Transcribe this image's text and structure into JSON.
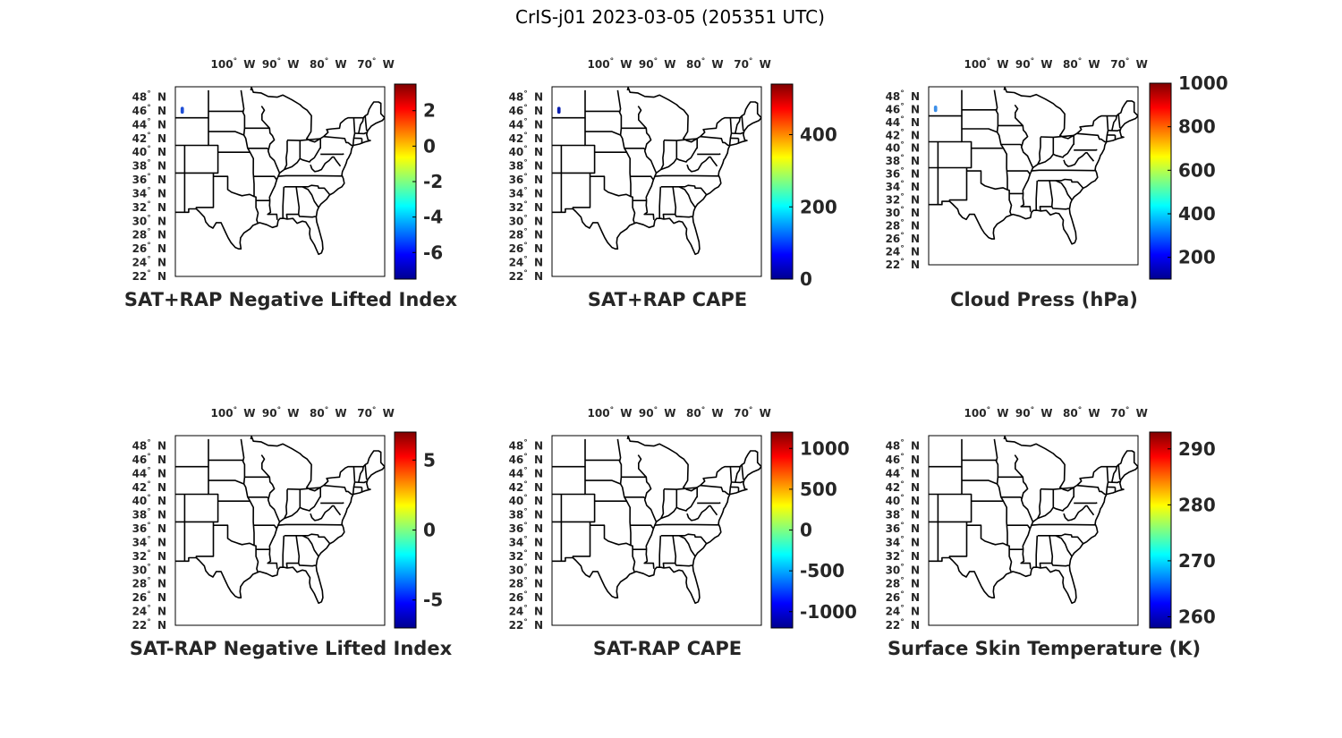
{
  "figure": {
    "title": "CrIS-j01 2023-03-05 (205351 UTC)"
  },
  "colormap": [
    "#00008f",
    "#0000ff",
    "#0080ff",
    "#00ffff",
    "#80ff80",
    "#ffff00",
    "#ff8000",
    "#ff0000",
    "#800000"
  ],
  "chart_data": [
    {
      "type": "heatmap",
      "title": "SAT+RAP Negative Lifted Index",
      "lon_ticks": [
        "100° W",
        "90° W",
        "80° W",
        "70° W"
      ],
      "lat_ticks": [
        "48° N",
        "46° N",
        "44° N",
        "42° N",
        "40° N",
        "38° N",
        "36° N",
        "34° N",
        "32° N",
        "30° N",
        "28° N",
        "26° N",
        "24° N",
        "22° N"
      ],
      "colorbar": {
        "range": [
          -7.5,
          3.5
        ],
        "ticks": [
          2,
          0,
          -2,
          -4,
          -6
        ]
      },
      "data_swath": {
        "lon": [
          -109.9,
          -109.2
        ],
        "lat": [
          45.6,
          46.6
        ],
        "color": "#1f4fd6"
      }
    },
    {
      "type": "heatmap",
      "title": "SAT+RAP CAPE",
      "lon_ticks": [
        "100° W",
        "90° W",
        "80° W",
        "70° W"
      ],
      "lat_ticks": [
        "48° N",
        "46° N",
        "44° N",
        "42° N",
        "40° N",
        "38° N",
        "36° N",
        "34° N",
        "32° N",
        "30° N",
        "28° N",
        "26° N",
        "24° N",
        "22° N"
      ],
      "colorbar": {
        "range": [
          0,
          540
        ],
        "ticks": [
          400,
          200,
          0
        ]
      },
      "data_swath": {
        "lon": [
          -109.9,
          -109.2
        ],
        "lat": [
          45.6,
          46.6
        ],
        "color": "#0a1fb0"
      }
    },
    {
      "type": "heatmap",
      "title": "Cloud Press (hPa)",
      "lon_ticks": [
        "100° W",
        "90° W",
        "80° W",
        "70° W"
      ],
      "lat_ticks": [
        "48° N",
        "46° N",
        "44° N",
        "42° N",
        "40° N",
        "38° N",
        "36° N",
        "34° N",
        "32° N",
        "30° N",
        "28° N",
        "26° N",
        "24° N",
        "22° N"
      ],
      "colorbar": {
        "range": [
          100,
          1000
        ],
        "ticks": [
          1000,
          800,
          600,
          400,
          200
        ]
      },
      "data_swath": {
        "lon": [
          -109.9,
          -109.2
        ],
        "lat": [
          45.6,
          46.6
        ],
        "color": "#3d8fe8"
      }
    },
    {
      "type": "heatmap",
      "title": "SAT-RAP Negative Lifted Index",
      "lon_ticks": [
        "100° W",
        "90° W",
        "80° W",
        "70° W"
      ],
      "lat_ticks": [
        "48° N",
        "46° N",
        "44° N",
        "42° N",
        "40° N",
        "38° N",
        "36° N",
        "34° N",
        "32° N",
        "30° N",
        "28° N",
        "26° N",
        "24° N",
        "22° N"
      ],
      "colorbar": {
        "range": [
          -7,
          7
        ],
        "ticks": [
          5,
          0,
          -5
        ]
      }
    },
    {
      "type": "heatmap",
      "title": "SAT-RAP CAPE",
      "lon_ticks": [
        "100° W",
        "90° W",
        "80° W",
        "70° W"
      ],
      "lat_ticks": [
        "48° N",
        "46° N",
        "44° N",
        "42° N",
        "40° N",
        "38° N",
        "36° N",
        "34° N",
        "32° N",
        "30° N",
        "28° N",
        "26° N",
        "24° N",
        "22° N"
      ],
      "colorbar": {
        "range": [
          -1200,
          1200
        ],
        "ticks": [
          1000,
          500,
          0,
          -500,
          -1000
        ]
      }
    },
    {
      "type": "heatmap",
      "title": "Surface Skin Temperature (K)",
      "lon_ticks": [
        "100° W",
        "90° W",
        "80° W",
        "70° W"
      ],
      "lat_ticks": [
        "48° N",
        "46° N",
        "44° N",
        "42° N",
        "40° N",
        "38° N",
        "36° N",
        "34° N",
        "32° N",
        "30° N",
        "28° N",
        "26° N",
        "24° N",
        "22° N"
      ],
      "colorbar": {
        "range": [
          258,
          293
        ],
        "ticks": [
          290,
          280,
          270,
          260
        ]
      }
    }
  ]
}
